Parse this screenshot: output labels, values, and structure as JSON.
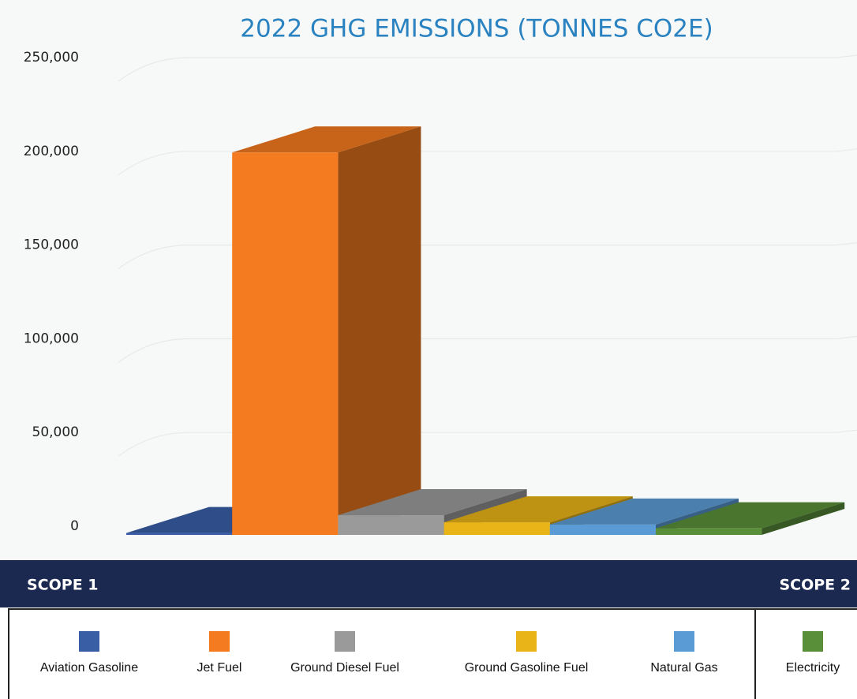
{
  "chart_data": {
    "type": "bar3d",
    "title": "2022 GHG EMISSIONS (TONNES CO2E)",
    "categories": [
      "Aviation Gasoline",
      "Jet Fuel",
      "Ground Diesel Fuel",
      "Ground Gasoline Fuel",
      "Natural Gas",
      "Electricity"
    ],
    "values": [
      1000,
      204000,
      10500,
      6700,
      5500,
      3500
    ],
    "colors": [
      "#3a5ea6",
      "#f47b20",
      "#9a9a9a",
      "#e8b418",
      "#5b9bd5",
      "#5a8f3a"
    ],
    "ylim": [
      0,
      250000
    ],
    "yticks": [
      {
        "value": 0,
        "label": "0"
      },
      {
        "value": 50000,
        "label": "50,000"
      },
      {
        "value": 100000,
        "label": "100,000"
      },
      {
        "value": 150000,
        "label": "150,000"
      },
      {
        "value": 200000,
        "label": "200,000"
      },
      {
        "value": 250000,
        "label": "250,000"
      }
    ],
    "grid": true,
    "groups": [
      {
        "label": "SCOPE 1"
      },
      {
        "label": "SCOPE 2"
      }
    ]
  }
}
